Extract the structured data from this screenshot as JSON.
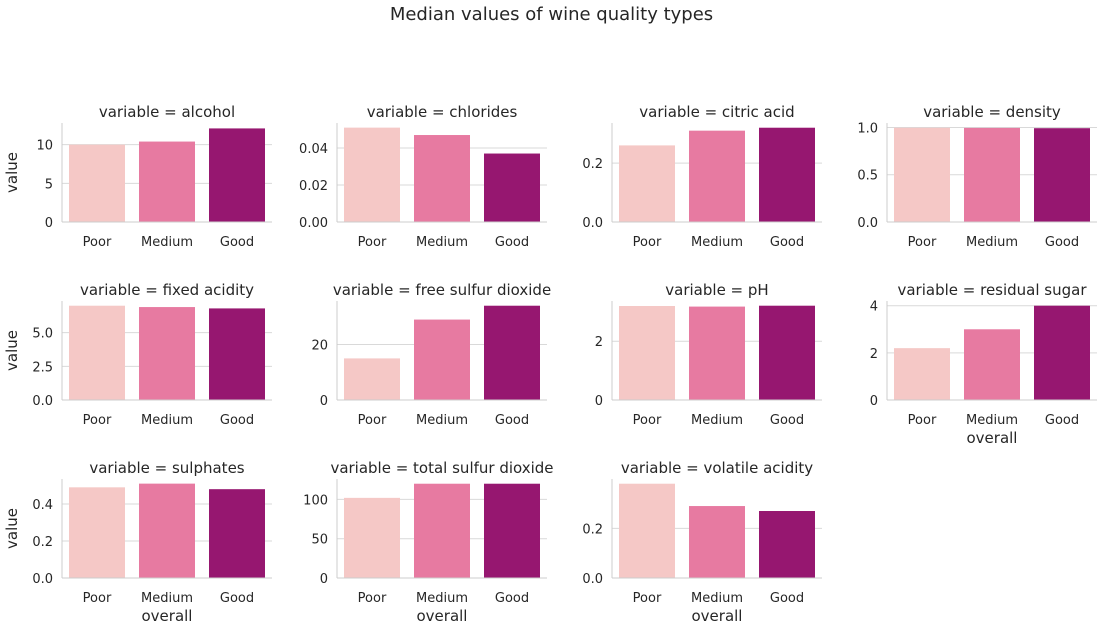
{
  "title": "Median values of wine quality types",
  "chart_data": [
    {
      "type": "bar",
      "title": "variable = alcohol",
      "categories": [
        "Poor",
        "Medium",
        "Good"
      ],
      "values": [
        10.0,
        10.4,
        12.1
      ],
      "ylim": [
        0,
        12.8
      ],
      "yticks": [
        0,
        5,
        10
      ],
      "ytick_labels": [
        "0",
        "5",
        "10"
      ],
      "ylabel": "value",
      "xlabel": ""
    },
    {
      "type": "bar",
      "title": "variable = chlorides",
      "categories": [
        "Poor",
        "Medium",
        "Good"
      ],
      "values": [
        0.051,
        0.047,
        0.037
      ],
      "ylim": [
        0,
        0.0535
      ],
      "yticks": [
        0,
        0.02,
        0.04
      ],
      "ytick_labels": [
        "0.00",
        "0.02",
        "0.04"
      ],
      "ylabel": "",
      "xlabel": ""
    },
    {
      "type": "bar",
      "title": "variable = citric acid",
      "categories": [
        "Poor",
        "Medium",
        "Good"
      ],
      "values": [
        0.26,
        0.31,
        0.32
      ],
      "ylim": [
        0,
        0.336
      ],
      "yticks": [
        0,
        0.2
      ],
      "ytick_labels": [
        "0.0",
        "0.2"
      ],
      "ylabel": "",
      "xlabel": ""
    },
    {
      "type": "bar",
      "title": "variable = density",
      "categories": [
        "Poor",
        "Medium",
        "Good"
      ],
      "values": [
        0.997,
        0.995,
        0.992
      ],
      "ylim": [
        0,
        1.047
      ],
      "yticks": [
        0,
        0.5,
        1.0
      ],
      "ytick_labels": [
        "0.0",
        "0.5",
        "1.0"
      ],
      "ylabel": "",
      "xlabel": ""
    },
    {
      "type": "bar",
      "title": "variable = fixed acidity",
      "categories": [
        "Poor",
        "Medium",
        "Good"
      ],
      "values": [
        7.0,
        6.9,
        6.8
      ],
      "ylim": [
        0,
        7.35
      ],
      "yticks": [
        0,
        2.5,
        5.0
      ],
      "ytick_labels": [
        "0.0",
        "2.5",
        "5.0"
      ],
      "ylabel": "value",
      "xlabel": ""
    },
    {
      "type": "bar",
      "title": "variable = free sulfur dioxide",
      "categories": [
        "Poor",
        "Medium",
        "Good"
      ],
      "values": [
        15,
        29,
        34
      ],
      "ylim": [
        0,
        35.7
      ],
      "yticks": [
        0,
        20
      ],
      "ytick_labels": [
        "0",
        "20"
      ],
      "ylabel": "",
      "xlabel": ""
    },
    {
      "type": "bar",
      "title": "variable = pH",
      "categories": [
        "Poor",
        "Medium",
        "Good"
      ],
      "values": [
        3.2,
        3.18,
        3.21
      ],
      "ylim": [
        0,
        3.37
      ],
      "yticks": [
        0,
        2
      ],
      "ytick_labels": [
        "0",
        "2"
      ],
      "ylabel": "",
      "xlabel": ""
    },
    {
      "type": "bar",
      "title": "variable = residual sugar",
      "categories": [
        "Poor",
        "Medium",
        "Good"
      ],
      "values": [
        2.2,
        3.0,
        4.0
      ],
      "ylim": [
        0,
        4.2
      ],
      "yticks": [
        0,
        2,
        4
      ],
      "ytick_labels": [
        "0",
        "2",
        "4"
      ],
      "ylabel": "",
      "xlabel": "overall"
    },
    {
      "type": "bar",
      "title": "variable = sulphates",
      "categories": [
        "Poor",
        "Medium",
        "Good"
      ],
      "values": [
        0.49,
        0.51,
        0.48
      ],
      "ylim": [
        0,
        0.535
      ],
      "yticks": [
        0,
        0.2,
        0.4
      ],
      "ytick_labels": [
        "0.0",
        "0.2",
        "0.4"
      ],
      "ylabel": "value",
      "xlabel": "overall"
    },
    {
      "type": "bar",
      "title": "variable = total sulfur dioxide",
      "categories": [
        "Poor",
        "Medium",
        "Good"
      ],
      "values": [
        102,
        120,
        120
      ],
      "ylim": [
        0,
        126
      ],
      "yticks": [
        0,
        50,
        100
      ],
      "ytick_labels": [
        "0",
        "50",
        "100"
      ],
      "ylabel": "",
      "xlabel": "overall"
    },
    {
      "type": "bar",
      "title": "variable = volatile acidity",
      "categories": [
        "Poor",
        "Medium",
        "Good"
      ],
      "values": [
        0.38,
        0.29,
        0.27
      ],
      "ylim": [
        0,
        0.399
      ],
      "yticks": [
        0,
        0.2
      ],
      "ytick_labels": [
        "0.0",
        "0.2"
      ],
      "ylabel": "",
      "xlabel": "overall"
    }
  ],
  "colors": [
    "#f5c8c6",
    "#e77aa1",
    "#961770"
  ],
  "grid": true
}
